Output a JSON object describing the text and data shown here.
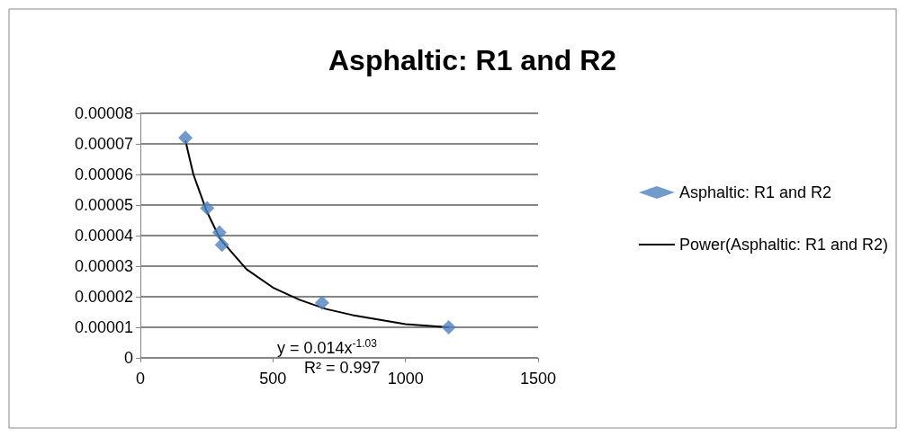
{
  "chart_data": {
    "type": "scatter",
    "title": "Asphaltic: R1 and R2",
    "grid": "y",
    "legend": "right",
    "xlim": [
      0,
      1500
    ],
    "xticks": [
      0,
      500,
      1000,
      1500
    ],
    "ylim": [
      0,
      8e-05
    ],
    "yticks": [
      0,
      {
        "value": 1e-05,
        "label": "0.00001"
      },
      {
        "value": 2e-05,
        "label": "0.00002"
      },
      {
        "value": 3e-05,
        "label": "0.00003"
      },
      {
        "value": 4e-05,
        "label": "0.00004"
      },
      {
        "value": 5e-05,
        "label": "0.00005"
      },
      {
        "value": 6e-05,
        "label": "0.00006"
      },
      {
        "value": 7e-05,
        "label": "0.00007"
      },
      {
        "value": 8e-05,
        "label": "0.00008"
      }
    ],
    "series": [
      {
        "name": "Asphaltic: R1 and R2",
        "color": "#4f81bd",
        "marker": "diamond",
        "x": [
          170,
          252,
          298,
          308,
          685,
          1163
        ],
        "values": [
          7.2e-05,
          4.9e-05,
          4.1e-05,
          3.7e-05,
          1.8e-05,
          1e-05
        ]
      },
      {
        "name": "Power(Asphaltic: R1 and R2)",
        "type": "line",
        "color": "#000000",
        "x": [
          170,
          200,
          250,
          300,
          400,
          500,
          600,
          700,
          800,
          1000,
          1163
        ],
        "values": [
          7.1e-05,
          6e-05,
          4.8e-05,
          3.9e-05,
          2.9e-05,
          2.3e-05,
          1.9e-05,
          1.6e-05,
          1.4e-05,
          1.1e-05,
          1e-05
        ]
      }
    ],
    "annotations": [
      "y = 0.014x$^{-1.03}$",
      "R² = 0.997"
    ]
  }
}
